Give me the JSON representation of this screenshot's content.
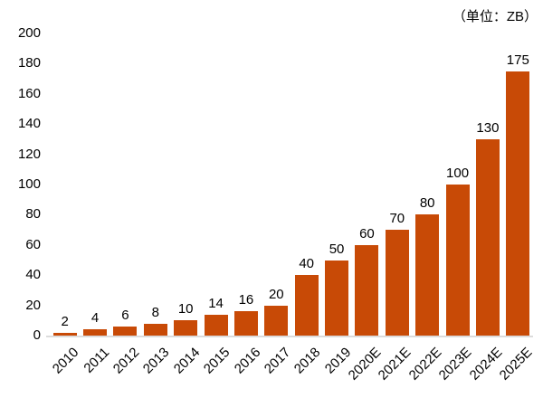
{
  "header": {
    "unit_label": "（单位：ZB）"
  },
  "colors": {
    "bar": "#C84A06",
    "baseline": "#DCDCDC",
    "text": "#000000",
    "background": "#FFFFFF"
  },
  "chart_data": {
    "type": "bar",
    "title": "",
    "unit": "（单位：ZB）",
    "categories": [
      "2010",
      "2011",
      "2012",
      "2013",
      "2014",
      "2015",
      "2016",
      "2017",
      "2018",
      "2019",
      "2020E",
      "2021E",
      "2022E",
      "2023E",
      "2024E",
      "2025E"
    ],
    "values": [
      2,
      4,
      6,
      8,
      10,
      14,
      16,
      20,
      40,
      50,
      60,
      70,
      80,
      100,
      130,
      175
    ],
    "xlabel": "",
    "ylabel": "",
    "ylim": [
      0,
      200
    ],
    "yticks": [
      0,
      20,
      40,
      60,
      80,
      100,
      120,
      140,
      160,
      180,
      200
    ],
    "grid": false,
    "legend_position": "none",
    "value_labels": true,
    "x_label_rotation": -45,
    "bar_color": "#C84A06"
  }
}
